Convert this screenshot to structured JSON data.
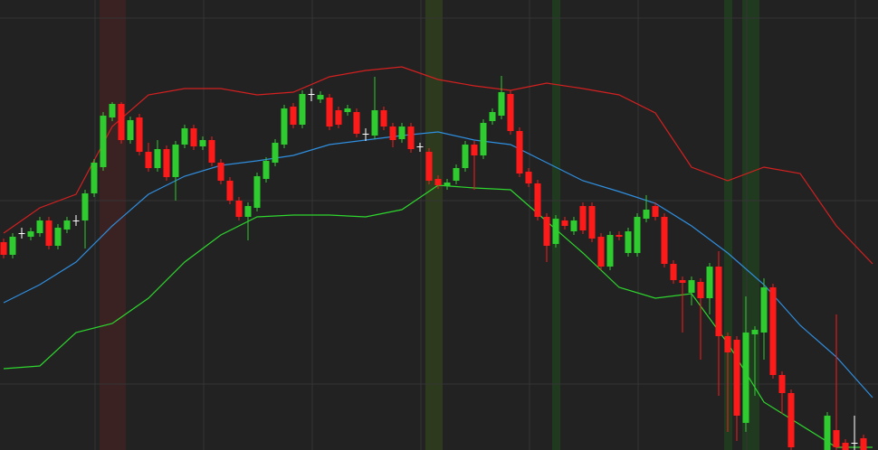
{
  "chart_data": {
    "type": "candlestick",
    "background": "#222222",
    "grid": true,
    "grid_color": "#343434",
    "up_color": "#2ecc2e",
    "down_color": "#ff1a1a",
    "doji_color": "#ffffff",
    "xlim": [
      -0.4,
      96.6
    ],
    "ylim": [
      0,
      498
    ],
    "xticks": [
      10.1,
      22.1,
      34.1,
      46.1,
      58.1,
      70.1,
      82.1,
      94.1
    ],
    "yticks": [
      478,
      276,
      73
    ],
    "regions": [
      {
        "start": 10.6,
        "end": 13.5,
        "color": "#3a2222"
      },
      {
        "start": 46.6,
        "end": 48.5,
        "color": "#2e3a1e"
      },
      {
        "start": 60.6,
        "end": 61.5,
        "color": "#1f3a1f"
      },
      {
        "start": 79.6,
        "end": 80.5,
        "color": "#1f3a1f"
      },
      {
        "start": 81.6,
        "end": 83.5,
        "color": "#1f3a1f"
      }
    ],
    "x": [
      0,
      1,
      2,
      3,
      4,
      5,
      6,
      7,
      8,
      9,
      10,
      11,
      12,
      13,
      14,
      15,
      16,
      17,
      18,
      19,
      20,
      21,
      22,
      23,
      24,
      25,
      26,
      27,
      28,
      29,
      30,
      31,
      32,
      33,
      34,
      35,
      36,
      37,
      38,
      39,
      40,
      41,
      42,
      43,
      44,
      45,
      46,
      47,
      48,
      49,
      50,
      51,
      52,
      53,
      54,
      55,
      56,
      57,
      58,
      59,
      60,
      61,
      62,
      63,
      64,
      65,
      66,
      67,
      68,
      69,
      70,
      71,
      72,
      73,
      74,
      75,
      76,
      77,
      78,
      79,
      80,
      81,
      82,
      83,
      84,
      85,
      86,
      87,
      91,
      92,
      93,
      94,
      95
    ],
    "open": [
      230,
      216,
      240,
      236,
      240,
      254,
      226,
      244,
      254,
      254,
      284,
      313,
      368,
      383,
      343,
      368,
      330,
      312,
      333,
      302,
      338,
      356,
      336,
      343,
      318,
      298,
      276,
      258,
      268,
      300,
      318,
      338,
      380,
      360,
      394,
      388,
      390,
      376,
      374,
      374,
      350,
      348,
      376,
      358,
      344,
      358,
      336,
      330,
      300,
      292,
      298,
      312,
      338,
      326,
      364,
      370,
      394,
      353,
      308,
      295,
      258,
      228,
      254,
      242,
      270,
      270,
      236,
      203,
      238,
      218,
      218,
      256,
      270,
      258,
      206,
      188,
      174,
      186,
      168,
      203,
      126,
      122,
      30,
      128,
      130,
      180,
      83,
      63,
      0,
      22,
      8,
      8,
      13
    ],
    "high": [
      234,
      240,
      246,
      246,
      258,
      258,
      250,
      258,
      260,
      288,
      322,
      374,
      385,
      385,
      369,
      372,
      340,
      343,
      337,
      342,
      360,
      360,
      347,
      347,
      322,
      302,
      280,
      274,
      307,
      324,
      344,
      382,
      384,
      398,
      400,
      397,
      394,
      380,
      382,
      378,
      356,
      413,
      380,
      362,
      362,
      362,
      340,
      334,
      304,
      300,
      316,
      342,
      342,
      366,
      378,
      414,
      398,
      357,
      312,
      299,
      262,
      260,
      258,
      258,
      274,
      274,
      240,
      242,
      242,
      246,
      262,
      282,
      274,
      262,
      210,
      192,
      192,
      190,
      207,
      220,
      130,
      126,
      170,
      137,
      190,
      184,
      87,
      67,
      42,
      150,
      12,
      38,
      17
    ],
    "low": [
      212,
      212,
      234,
      232,
      236,
      222,
      222,
      240,
      248,
      223,
      280,
      309,
      364,
      339,
      339,
      326,
      308,
      308,
      298,
      276,
      334,
      332,
      332,
      314,
      294,
      272,
      254,
      232,
      264,
      296,
      314,
      334,
      356,
      356,
      386,
      384,
      354,
      356,
      370,
      346,
      342,
      344,
      354,
      335,
      340,
      329,
      330,
      294,
      289,
      288,
      294,
      308,
      288,
      322,
      360,
      366,
      349,
      302,
      291,
      254,
      208,
      224,
      244,
      238,
      239,
      230,
      199,
      199,
      232,
      214,
      214,
      252,
      254,
      202,
      184,
      130,
      160,
      100,
      150,
      60,
      20,
      10,
      20,
      60,
      100,
      79,
      40,
      0,
      0,
      0,
      0,
      0,
      0
    ],
    "close": [
      216,
      236,
      240,
      242,
      254,
      226,
      246,
      254,
      254,
      284,
      318,
      370,
      383,
      343,
      365,
      330,
      312,
      333,
      302,
      338,
      356,
      336,
      343,
      318,
      298,
      276,
      258,
      270,
      303,
      320,
      340,
      378,
      360,
      394,
      394,
      393,
      358,
      360,
      378,
      350,
      350,
      376,
      358,
      343,
      358,
      333,
      336,
      298,
      293,
      296,
      312,
      338,
      326,
      362,
      374,
      396,
      353,
      306,
      295,
      258,
      226,
      256,
      248,
      254,
      243,
      234,
      203,
      238,
      236,
      242,
      258,
      266,
      258,
      206,
      188,
      185,
      188,
      168,
      203,
      126,
      108,
      38,
      130,
      133,
      180,
      83,
      63,
      3,
      38,
      3,
      0,
      8,
      0
    ],
    "band_x": [
      0,
      4,
      8,
      12,
      16,
      20,
      24,
      28,
      32,
      36,
      40,
      44,
      48,
      52,
      56,
      60,
      64,
      68,
      72,
      76,
      80,
      84,
      88,
      92,
      96
    ],
    "bands": [
      {
        "color": "#d42020",
        "values": [
          240,
          268,
          283,
          358,
          393,
          400,
          400,
          393,
          396,
          413,
          420,
          424,
          410,
          403,
          398,
          406,
          400,
          393,
          373,
          313,
          298,
          313,
          306,
          248,
          206
        ]
      },
      {
        "color": "#2f8fe0",
        "values": [
          163,
          183,
          208,
          248,
          283,
          303,
          315,
          320,
          326,
          338,
          343,
          348,
          352,
          343,
          338,
          318,
          298,
          286,
          273,
          248,
          218,
          183,
          138,
          103,
          58
        ]
      },
      {
        "color": "#2ed62e",
        "values": [
          90,
          93,
          130,
          140,
          168,
          208,
          238,
          258,
          260,
          260,
          258,
          266,
          293,
          290,
          288,
          253,
          218,
          180,
          168,
          173,
          118,
          53,
          28,
          3,
          3
        ]
      }
    ]
  }
}
